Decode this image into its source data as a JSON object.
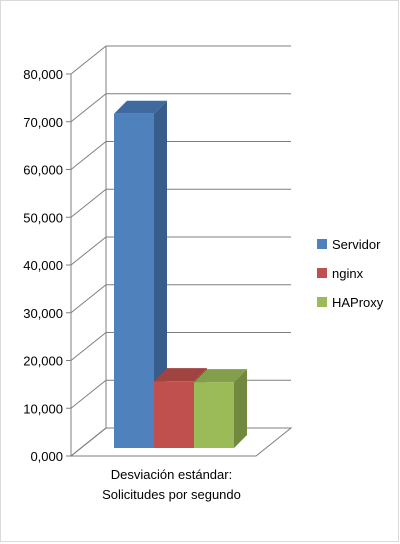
{
  "chart_data": {
    "type": "bar",
    "categories": [
      "Desviación estándar: Solicitudes por segundo"
    ],
    "category_lines": [
      "Desviación estándar:",
      "Solicitudes por segundo"
    ],
    "series": [
      {
        "name": "Servidor",
        "values": [
          70000
        ],
        "color": "#4f81bd",
        "side": "#385d8a",
        "top": "#3f6aa0"
      },
      {
        "name": "nginx",
        "values": [
          14000
        ],
        "color": "#c0504d",
        "side": "#8c3836",
        "top": "#a14341"
      },
      {
        "name": "HAProxy",
        "values": [
          13800
        ],
        "color": "#9bbb59",
        "side": "#71893f",
        "top": "#839f4b"
      }
    ],
    "ylim": [
      0,
      80000
    ],
    "yticks": [
      0,
      10000,
      20000,
      30000,
      40000,
      50000,
      60000,
      70000,
      80000
    ],
    "ytick_labels": [
      "0,000",
      "10,000",
      "20,000",
      "30,000",
      "40,000",
      "50,000",
      "60,000",
      "70,000",
      "80,000"
    ],
    "grid": true,
    "legend_position": "right",
    "title": "",
    "xlabel": "",
    "ylabel": ""
  }
}
